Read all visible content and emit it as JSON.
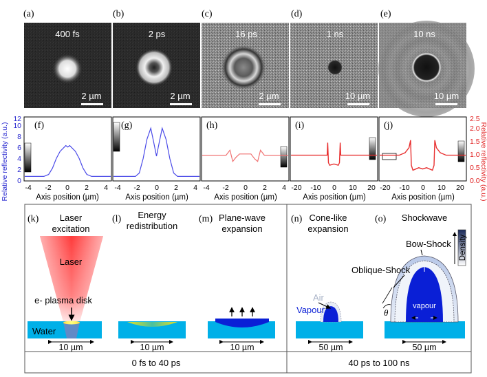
{
  "top_row": {
    "panels": [
      {
        "letter": "(a)",
        "time": "400 fs",
        "scale": "2 µm"
      },
      {
        "letter": "(b)",
        "time": "2 ps",
        "scale": "2 µm"
      },
      {
        "letter": "(c)",
        "time": "16 ps",
        "scale": "2 µm"
      },
      {
        "letter": "(d)",
        "time": "1 ns",
        "scale": "10 µm"
      },
      {
        "letter": "(e)",
        "time": "10 ns",
        "scale": "10 µm"
      }
    ]
  },
  "profiles": {
    "left_ylabel": "Relative reflectivity (a.u.)",
    "right_ylabel": "Relative reflectivity (a.u.)",
    "xlabel": "Axis position (µm)",
    "left_yticks": [
      "0",
      "2",
      "4",
      "6",
      "8",
      "10",
      "12"
    ],
    "right_yticks": [
      "0.0",
      "0.5",
      "1.0",
      "1.5",
      "2.0",
      "2.5"
    ],
    "panels": [
      {
        "letter": "(f)",
        "xticks": [
          "-4",
          "-2",
          "0",
          "2",
          "4"
        ]
      },
      {
        "letter": "(g)",
        "xticks": [
          "-4",
          "-2",
          "0",
          "2",
          "4"
        ]
      },
      {
        "letter": "(h)",
        "xticks": [
          "-4",
          "-2",
          "0",
          "2",
          "4"
        ]
      },
      {
        "letter": "(i)",
        "xticks": [
          "-20",
          "-10",
          "0",
          "10",
          "20"
        ]
      },
      {
        "letter": "(j)",
        "xticks": [
          "-20",
          "-10",
          "0",
          "10",
          "20"
        ]
      }
    ]
  },
  "chart_data": [
    {
      "type": "line",
      "panel": "(f)",
      "xlabel": "Axis position (µm)",
      "ylabel": "Relative reflectivity (a.u.)",
      "xlim": [
        -4.5,
        4.5
      ],
      "ylim": [
        0,
        13
      ],
      "x": [
        -4.5,
        -2.5,
        -2.0,
        -1.6,
        -1.2,
        -0.8,
        -0.4,
        -0.2,
        0.0,
        0.2,
        0.4,
        0.8,
        1.2,
        1.6,
        2.0,
        2.5,
        4.5
      ],
      "y": [
        0.8,
        0.8,
        1.2,
        2.5,
        4.5,
        6.0,
        6.8,
        7.2,
        6.9,
        7.2,
        6.8,
        6.0,
        4.5,
        2.5,
        1.2,
        0.8,
        0.8
      ]
    },
    {
      "type": "line",
      "panel": "(g)",
      "xlabel": "Axis position (µm)",
      "ylabel": "Relative reflectivity (a.u.)",
      "xlim": [
        -4.5,
        4.5
      ],
      "ylim": [
        0,
        13
      ],
      "x": [
        -4.5,
        -2.2,
        -1.8,
        -1.4,
        -1.0,
        -0.6,
        -0.3,
        0.0,
        0.3,
        0.6,
        1.0,
        1.4,
        1.8,
        2.2,
        4.5
      ],
      "y": [
        0.8,
        0.8,
        1.5,
        4.5,
        8.5,
        10.8,
        8.0,
        5.0,
        8.0,
        10.8,
        8.5,
        4.5,
        1.5,
        0.8,
        0.8
      ]
    },
    {
      "type": "line",
      "panel": "(h)",
      "xlabel": "Axis position (µm)",
      "ylabel": "Relative reflectivity (a.u.)",
      "xlim": [
        -4.5,
        4.5
      ],
      "ylim": [
        0,
        2.5
      ],
      "x": [
        -4.5,
        -2.0,
        -1.6,
        -1.3,
        -1.0,
        -0.6,
        0.0,
        0.6,
        1.0,
        1.3,
        1.6,
        2.0,
        4.5
      ],
      "y": [
        1.0,
        1.0,
        1.2,
        0.75,
        0.9,
        1.05,
        1.05,
        1.05,
        0.85,
        0.75,
        1.2,
        1.0,
        1.0
      ]
    },
    {
      "type": "line",
      "panel": "(i)",
      "xlabel": "Axis position (µm)",
      "ylabel": "Relative reflectivity (a.u.)",
      "xlim": [
        -22,
        22
      ],
      "ylim": [
        0,
        2.5
      ],
      "x": [
        -22,
        -3.5,
        -3.2,
        -2.8,
        -2.2,
        0.0,
        2.2,
        2.8,
        3.2,
        3.5,
        22
      ],
      "y": [
        1.0,
        1.0,
        1.5,
        0.7,
        0.6,
        0.65,
        0.6,
        0.7,
        1.5,
        1.0,
        1.0
      ]
    },
    {
      "type": "line",
      "panel": "(j)",
      "xlabel": "Axis position (µm)",
      "ylabel": "Relative reflectivity (a.u.)",
      "xlim": [
        -22,
        22
      ],
      "ylim": [
        0,
        2.5
      ],
      "x": [
        -22,
        -12,
        -9,
        -7,
        -6.2,
        -5.8,
        -5,
        -2,
        0,
        2,
        5,
        5.8,
        6.2,
        7,
        9,
        12,
        22
      ],
      "y": [
        1.0,
        1.0,
        1.1,
        1.3,
        1.6,
        0.6,
        0.4,
        0.5,
        0.45,
        0.5,
        0.4,
        0.6,
        1.6,
        1.3,
        1.1,
        1.0,
        1.0
      ]
    }
  ],
  "schematic": {
    "panels": [
      {
        "letter": "(k)",
        "title1": "Laser",
        "title2": "excitation"
      },
      {
        "letter": "(l)",
        "title1": "Energy",
        "title2": "redistribution"
      },
      {
        "letter": "(m)",
        "title1": "Plane-wave",
        "title2": "expansion"
      },
      {
        "letter": "(n)",
        "title1": "Cone-like",
        "title2": "expansion"
      },
      {
        "letter": "(o)",
        "title1": "Shockwave",
        "title2": ""
      }
    ],
    "laser_label": "Laser",
    "plasma_label": "e- plasma disk",
    "water_label": "Water",
    "air_label": "Air",
    "vapour_label": "Vapour",
    "vapour_small_label": "vapour",
    "bow_shock_label": "Bow-Shock",
    "oblique_shock_label": "Oblique-Shock",
    "density_label": "Density",
    "theta_label": "θ",
    "scales": [
      "10 µm",
      "10 µm",
      "10 µm",
      "50 µm",
      "50 µm"
    ],
    "time_left": "0 fs to 40 ps",
    "time_right": "40 ps to 100 ns",
    "colors": {
      "water": "#00b0e8",
      "vapour": "#0a1fd6",
      "laser": "#ff2020",
      "blue_line": "#4a4ae8",
      "red_line": "#e83030"
    }
  }
}
